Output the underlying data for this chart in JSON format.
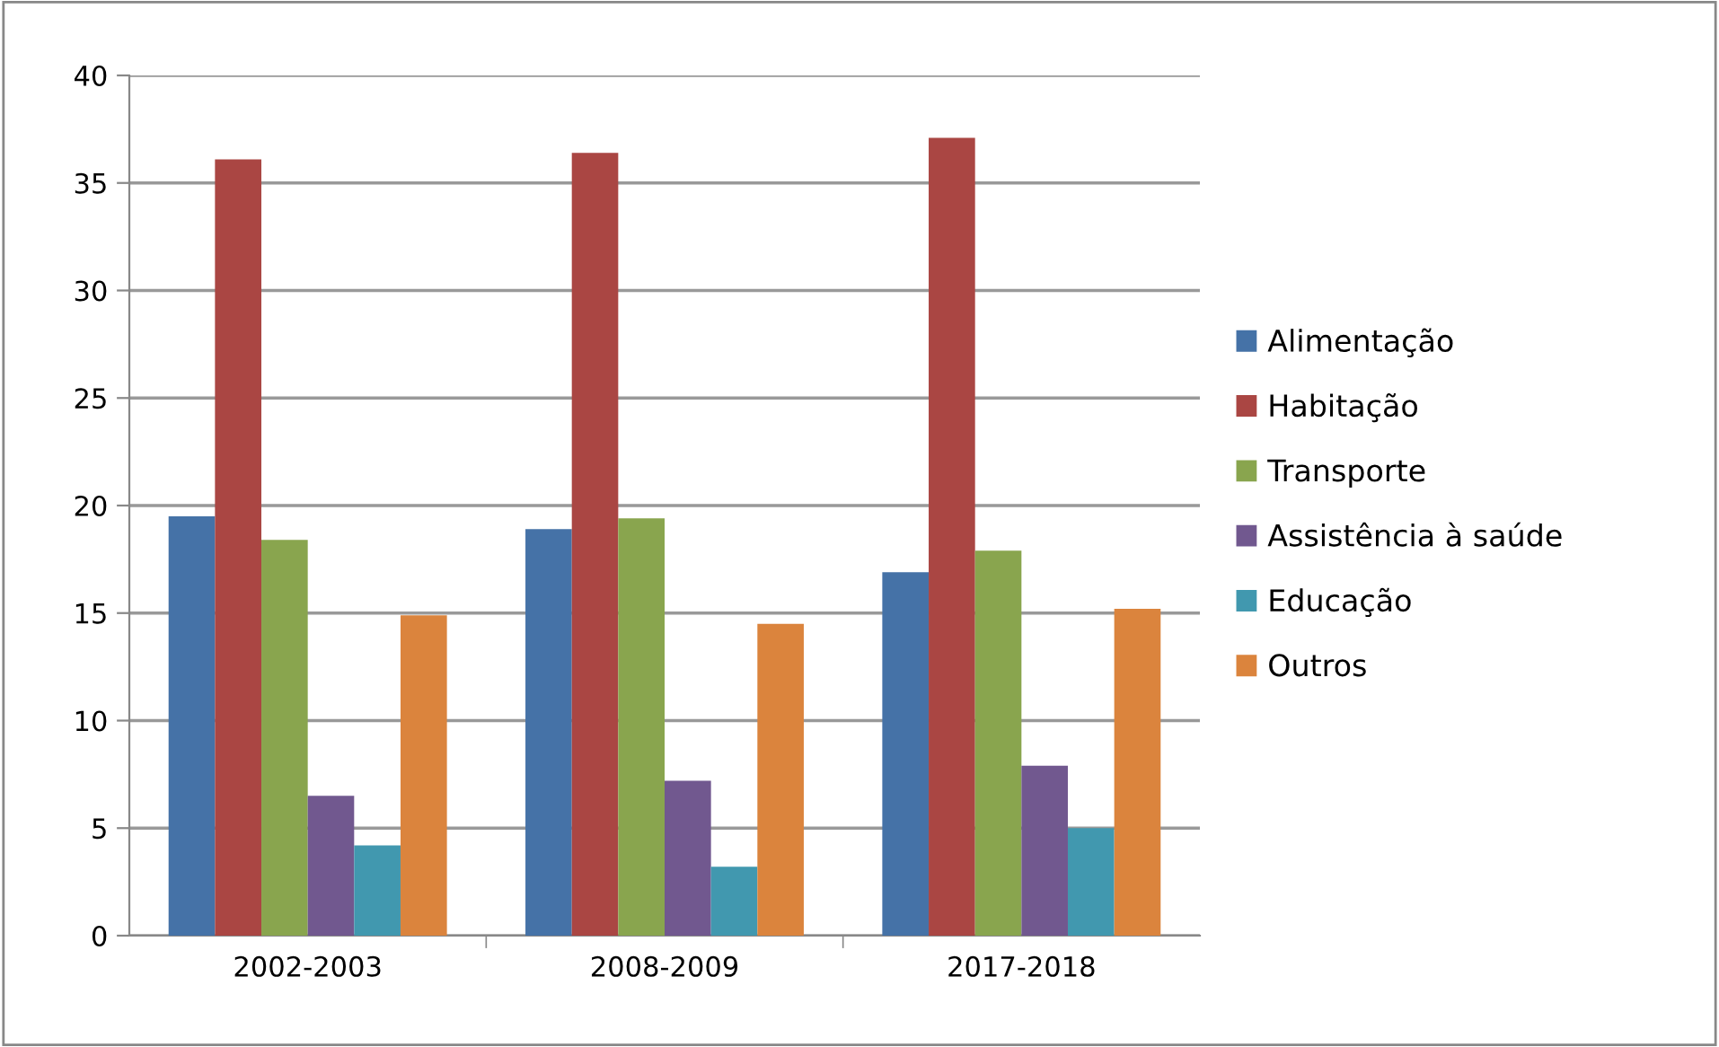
{
  "chart_data": {
    "type": "bar",
    "categories": [
      "2002-2003",
      "2008-2009",
      "2017-2018"
    ],
    "series": [
      {
        "name": "Alimentação",
        "color": "#4572a7",
        "values": [
          19.5,
          18.9,
          16.9
        ]
      },
      {
        "name": "Habitação",
        "color": "#aa4643",
        "values": [
          36.1,
          36.4,
          37.1
        ]
      },
      {
        "name": "Transporte",
        "color": "#89a54e",
        "values": [
          18.4,
          19.4,
          17.9
        ]
      },
      {
        "name": "Assistência à saúde",
        "color": "#71588f",
        "values": [
          6.5,
          7.2,
          7.9
        ]
      },
      {
        "name": "Educação",
        "color": "#4198af",
        "values": [
          4.2,
          3.2,
          5.0
        ]
      },
      {
        "name": "Outros",
        "color": "#db843d",
        "values": [
          14.9,
          14.5,
          15.2
        ]
      }
    ],
    "ylim": [
      0,
      40
    ],
    "yticks": [
      0,
      5,
      10,
      15,
      20,
      25,
      30,
      35,
      40
    ],
    "grid": "y",
    "legend": "right"
  }
}
